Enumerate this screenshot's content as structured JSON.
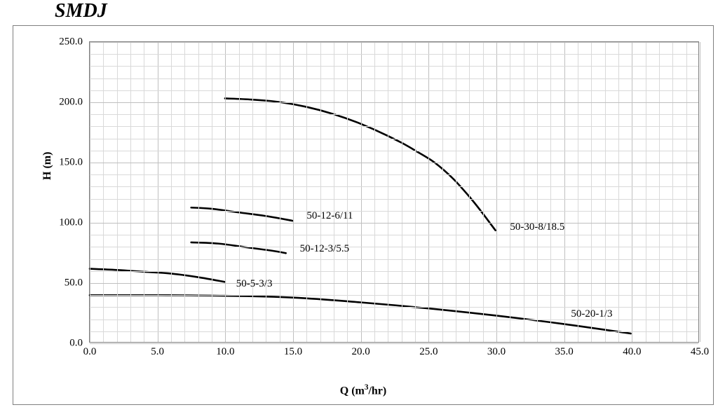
{
  "title": "SMDJ",
  "chart": {
    "type": "line",
    "background_color": "#ffffff",
    "border_color": "#7f7f7f",
    "xlabel_html": "Q (m<sup>3</sup>/hr)",
    "ylabel": "H (m)",
    "label_fontsize": 16,
    "tick_fontsize": 15,
    "xlim": [
      0,
      45
    ],
    "ylim": [
      0,
      250
    ],
    "x_major_step": 5.0,
    "x_minor_step": 1.0,
    "y_major_step": 50.0,
    "y_minor_step": 10.0,
    "major_grid_color": "#bfbfbf",
    "minor_grid_color": "#d9d9d9",
    "line_color": "#000000",
    "line_width": 2.6,
    "xticks": [
      "0.0",
      "5.0",
      "10.0",
      "15.0",
      "20.0",
      "25.0",
      "30.0",
      "35.0",
      "40.0",
      "45.0"
    ],
    "yticks": [
      "0.0",
      "50.0",
      "100.0",
      "150.0",
      "200.0",
      "250.0"
    ],
    "series": [
      {
        "label": "50-30-8/18.5",
        "label_at": {
          "x": 31.0,
          "y": 96.0
        },
        "points": [
          {
            "x": 10.0,
            "y": 203.0
          },
          {
            "x": 12.0,
            "y": 202.0
          },
          {
            "x": 14.0,
            "y": 200.0
          },
          {
            "x": 16.0,
            "y": 196.0
          },
          {
            "x": 18.0,
            "y": 190.0
          },
          {
            "x": 20.0,
            "y": 182.0
          },
          {
            "x": 22.0,
            "y": 172.0
          },
          {
            "x": 24.0,
            "y": 160.0
          },
          {
            "x": 26.0,
            "y": 145.0
          },
          {
            "x": 28.0,
            "y": 122.0
          },
          {
            "x": 30.0,
            "y": 93.0
          }
        ]
      },
      {
        "label": "50-12-6/11",
        "label_at": {
          "x": 16.0,
          "y": 105.0
        },
        "points": [
          {
            "x": 7.5,
            "y": 112.0
          },
          {
            "x": 9.0,
            "y": 111.0
          },
          {
            "x": 11.0,
            "y": 108.0
          },
          {
            "x": 13.0,
            "y": 105.0
          },
          {
            "x": 15.0,
            "y": 101.0
          }
        ]
      },
      {
        "label": "50-12-3/5.5",
        "label_at": {
          "x": 15.5,
          "y": 78.0
        },
        "points": [
          {
            "x": 7.5,
            "y": 83.0
          },
          {
            "x": 9.5,
            "y": 82.0
          },
          {
            "x": 11.5,
            "y": 79.0
          },
          {
            "x": 13.5,
            "y": 76.0
          },
          {
            "x": 14.5,
            "y": 74.0
          }
        ]
      },
      {
        "label": "50-5-3/3",
        "label_at": {
          "x": 10.8,
          "y": 49.0
        },
        "points": [
          {
            "x": 0.0,
            "y": 61.0
          },
          {
            "x": 2.0,
            "y": 60.0
          },
          {
            "x": 4.0,
            "y": 58.5
          },
          {
            "x": 6.0,
            "y": 57.0
          },
          {
            "x": 8.0,
            "y": 54.0
          },
          {
            "x": 10.0,
            "y": 50.0
          }
        ]
      },
      {
        "label": "50-20-1/3",
        "label_at": {
          "x": 35.5,
          "y": 24.0
        },
        "points": [
          {
            "x": 0.0,
            "y": 39.0
          },
          {
            "x": 5.0,
            "y": 39.0
          },
          {
            "x": 10.0,
            "y": 38.5
          },
          {
            "x": 15.0,
            "y": 37.0
          },
          {
            "x": 20.0,
            "y": 33.0
          },
          {
            "x": 25.0,
            "y": 28.0
          },
          {
            "x": 30.0,
            "y": 22.0
          },
          {
            "x": 35.0,
            "y": 15.0
          },
          {
            "x": 40.0,
            "y": 7.0
          }
        ]
      }
    ]
  }
}
